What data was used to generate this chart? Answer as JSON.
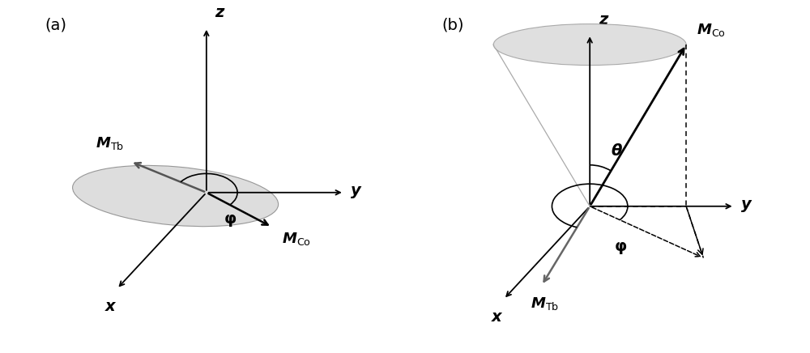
{
  "bg_color": "#ffffff",
  "panel_a_label": "(a)",
  "panel_b_label": "(b)",
  "ellipse_color": "#d8d8d8",
  "ellipse_edge_color": "#888888",
  "cone_color": "#d8d8d8",
  "cone_edge_color": "#999999",
  "label_z": "z",
  "label_y": "y",
  "label_x": "x",
  "label_MTb": "$\\boldsymbol{M}_{\\mathrm{Tb}}$",
  "label_MCo": "$\\boldsymbol{M}_{\\mathrm{Co}}$",
  "label_phi": "$\\boldsymbol{\\varphi}$",
  "label_theta": "$\\boldsymbol{\\theta}$",
  "font_size_labels": 13,
  "font_size_panel": 14,
  "font_size_axis": 14
}
